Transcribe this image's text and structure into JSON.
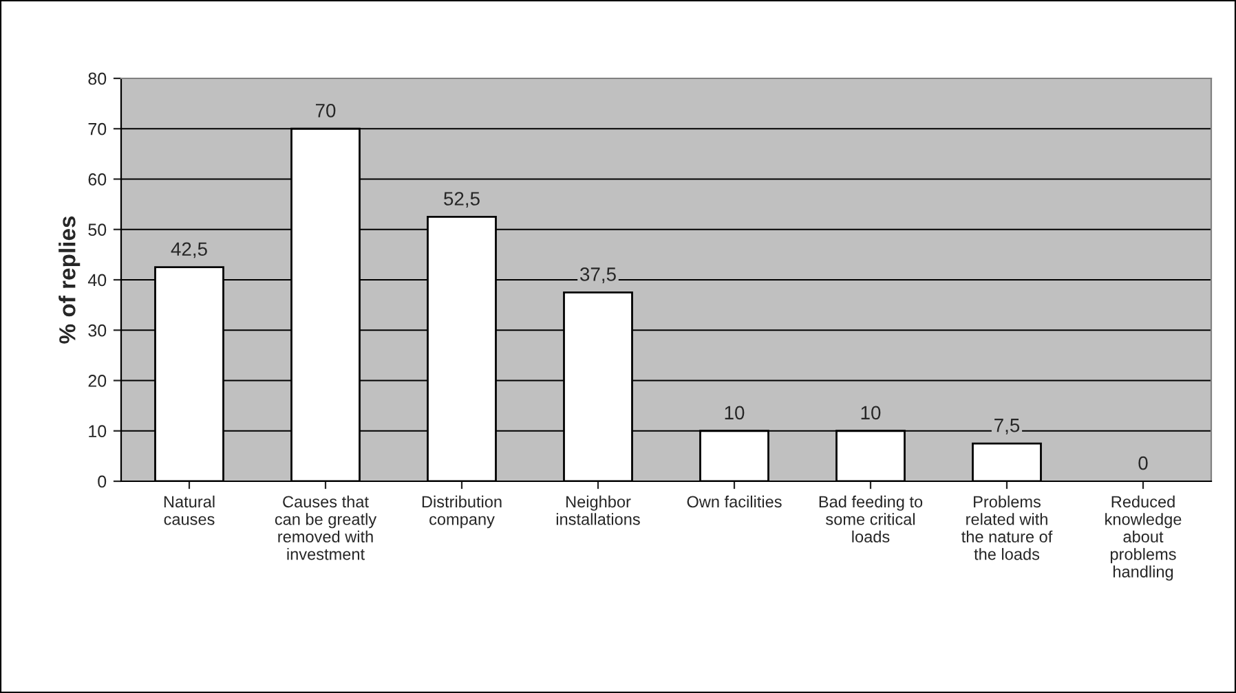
{
  "chart_data": {
    "type": "bar",
    "ylabel": "% of replies",
    "categories": [
      "Natural\ncauses",
      "Causes that\ncan be greatly\nremoved with\ninvestment",
      "Distribution\ncompany",
      "Neighbor\ninstallations",
      "Own facilities",
      "Bad feeding to\nsome critical\nloads",
      "Problems\nrelated with\nthe nature of\nthe loads",
      "Reduced\nknowledge\nabout\nproblems\nhandling"
    ],
    "values": [
      42.5,
      70,
      52.5,
      37.5,
      10,
      10,
      7.5,
      0
    ],
    "value_labels": [
      "42,5",
      "70",
      "52,5",
      "37,5",
      "10",
      "10",
      "7,5",
      "0"
    ],
    "color": "#ffffff",
    "ylim": [
      0,
      80
    ],
    "yticks": [
      0,
      10,
      20,
      30,
      40,
      50,
      60,
      70,
      80
    ],
    "grid": "y"
  }
}
